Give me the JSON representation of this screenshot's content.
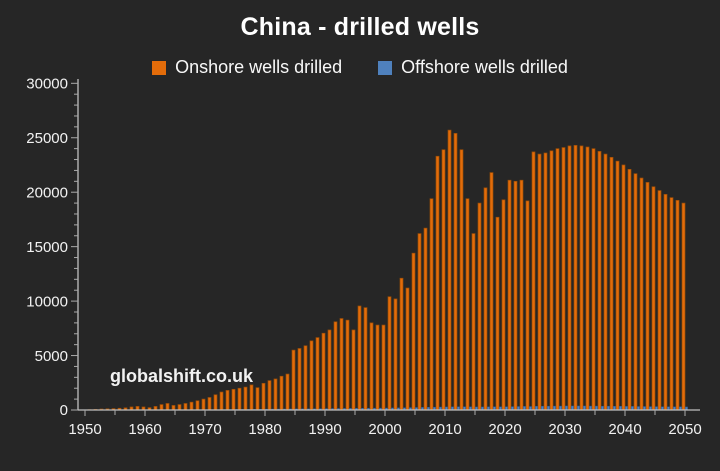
{
  "page": {
    "background": "#262626",
    "text_color": "#F2F2F2",
    "axis_color": "#BFBFBF",
    "tick_color": "#ABABAB"
  },
  "title": "China - drilled wells",
  "watermark": "globalshift.co.uk",
  "chart_data": {
    "type": "bar",
    "title": "China - drilled wells",
    "xlabel": "",
    "ylabel": "",
    "ylim": [
      0,
      30000
    ],
    "grid": false,
    "legend_position": "top",
    "y_axis": {
      "label_step": 5000,
      "minor_step": 1000,
      "tick_labels": [
        "0",
        "5000",
        "10000",
        "15000",
        "20000",
        "25000",
        "30000"
      ]
    },
    "x_axis": {
      "min": 1950,
      "max": 2050,
      "tick_step": 5,
      "label_step": 10,
      "tick_labels": [
        "1950",
        "1960",
        "1970",
        "1980",
        "1990",
        "2000",
        "2010",
        "2020",
        "2030",
        "2040",
        "2050"
      ]
    },
    "categories": [
      1950,
      1951,
      1952,
      1953,
      1954,
      1955,
      1956,
      1957,
      1958,
      1959,
      1960,
      1961,
      1962,
      1963,
      1964,
      1965,
      1966,
      1967,
      1968,
      1969,
      1970,
      1971,
      1972,
      1973,
      1974,
      1975,
      1976,
      1977,
      1978,
      1979,
      1980,
      1981,
      1982,
      1983,
      1984,
      1985,
      1986,
      1987,
      1988,
      1989,
      1990,
      1991,
      1992,
      1993,
      1994,
      1995,
      1996,
      1997,
      1998,
      1999,
      2000,
      2001,
      2002,
      2003,
      2004,
      2005,
      2006,
      2007,
      2008,
      2009,
      2010,
      2011,
      2012,
      2013,
      2014,
      2015,
      2016,
      2017,
      2018,
      2019,
      2020,
      2021,
      2022,
      2023,
      2024,
      2025,
      2026,
      2027,
      2028,
      2029,
      2030,
      2031,
      2032,
      2033,
      2034,
      2035,
      2036,
      2037,
      2038,
      2039,
      2040,
      2041,
      2042,
      2043,
      2044,
      2045,
      2046,
      2047,
      2048,
      2049,
      2050
    ],
    "series": [
      {
        "name": "Onshore wells drilled",
        "color": "#E36C0A",
        "edge_color": "#9A4D07",
        "values": [
          0,
          30,
          60,
          90,
          110,
          130,
          160,
          200,
          280,
          330,
          280,
          220,
          330,
          500,
          600,
          420,
          500,
          600,
          720,
          850,
          1000,
          1150,
          1400,
          1650,
          1800,
          1900,
          2000,
          2100,
          2300,
          2050,
          2450,
          2700,
          2850,
          3100,
          3300,
          5500,
          5650,
          5900,
          6350,
          6650,
          7050,
          7350,
          8100,
          8400,
          8250,
          7350,
          9550,
          9400,
          8000,
          7800,
          7800,
          10400,
          10200,
          12100,
          11200,
          14400,
          16200,
          16700,
          19400,
          23300,
          23900,
          25700,
          25400,
          23900,
          19400,
          16200,
          19000,
          20400,
          21800,
          17700,
          19300,
          21100,
          21000,
          21100,
          19200,
          23700,
          23500,
          23600,
          23800,
          24000,
          24100,
          24250,
          24300,
          24250,
          24150,
          24000,
          23750,
          23500,
          23200,
          22850,
          22500,
          22100,
          21700,
          21300,
          20900,
          20500,
          20150,
          19800,
          19500,
          19250,
          19000
        ]
      },
      {
        "name": "Offshore wells drilled",
        "color": "#4F81BD",
        "edge_color": "#2E5B8F",
        "values": [
          0,
          0,
          0,
          0,
          0,
          0,
          0,
          0,
          0,
          0,
          0,
          0,
          0,
          0,
          0,
          0,
          0,
          10,
          15,
          20,
          25,
          30,
          35,
          40,
          45,
          50,
          55,
          60,
          65,
          70,
          80,
          85,
          90,
          95,
          100,
          105,
          110,
          115,
          120,
          125,
          130,
          135,
          140,
          145,
          150,
          155,
          160,
          165,
          170,
          175,
          180,
          190,
          200,
          210,
          220,
          230,
          240,
          250,
          260,
          270,
          280,
          290,
          300,
          300,
          290,
          280,
          280,
          290,
          300,
          290,
          300,
          310,
          320,
          330,
          320,
          340,
          350,
          350,
          360,
          360,
          370,
          370,
          370,
          370,
          360,
          360,
          350,
          350,
          340,
          340,
          330,
          330,
          320,
          320,
          310,
          310,
          300,
          300,
          290,
          290,
          280
        ]
      }
    ]
  }
}
